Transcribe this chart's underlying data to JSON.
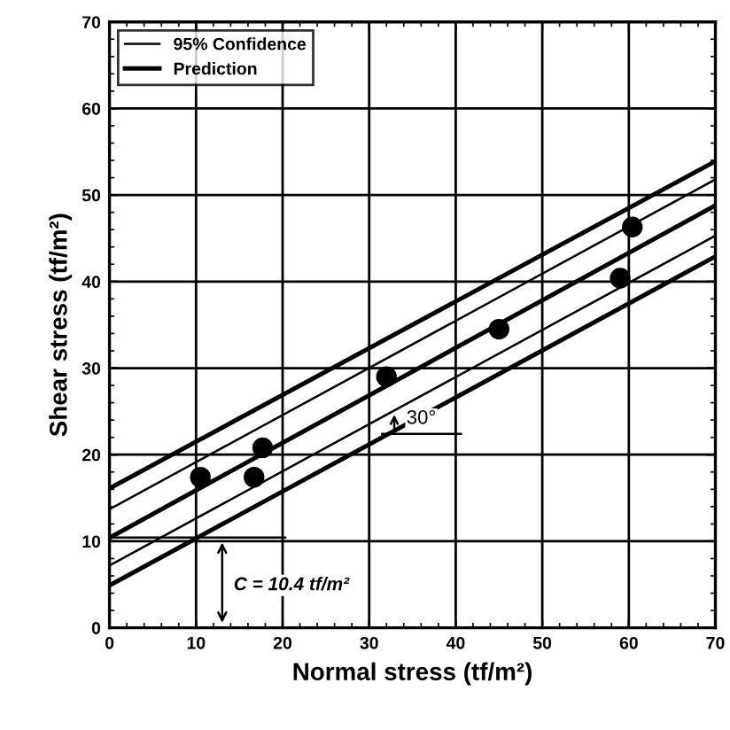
{
  "chart_data": {
    "type": "scatter",
    "xlabel": "Normal stress (tf/m²)",
    "ylabel": "Shear stress (tf/m²)",
    "xlim": [
      0,
      70
    ],
    "ylim": [
      0,
      70
    ],
    "xticks": [
      0,
      10,
      20,
      30,
      40,
      50,
      60,
      70
    ],
    "yticks": [
      0,
      10,
      20,
      30,
      40,
      50,
      60,
      70
    ],
    "grid": true,
    "legend": "top left",
    "series": [
      {
        "color": "#000000",
        "marker": "circle",
        "x": [
          10.5,
          16.7,
          17.7,
          32,
          45,
          59,
          60.4
        ],
        "values": [
          17.4,
          17.4,
          20.8,
          29,
          34.5,
          40.4,
          46.3
        ]
      },
      {
        "type": "line",
        "name": "95% Confidence",
        "color": "#000000",
        "x": [
          0,
          70
        ],
        "values": [
          13.7,
          51.8
        ]
      },
      {
        "type": "line",
        "color": "#000000",
        "x": [
          0,
          70
        ],
        "values": [
          7.2,
          45.3
        ]
      },
      {
        "type": "line",
        "name": "Prediction",
        "color": "#000000",
        "x": [
          0,
          70
        ],
        "values": [
          16.1,
          53.9
        ]
      },
      {
        "type": "line",
        "color": "#000000",
        "x": [
          0,
          70
        ],
        "values": [
          10.4,
          48.8
        ]
      },
      {
        "type": "line",
        "color": "#000000",
        "x": [
          0,
          70
        ],
        "values": [
          4.9,
          42.9
        ]
      }
    ],
    "annotations": [
      "C = 10.4 tf/m²",
      "30°"
    ]
  }
}
